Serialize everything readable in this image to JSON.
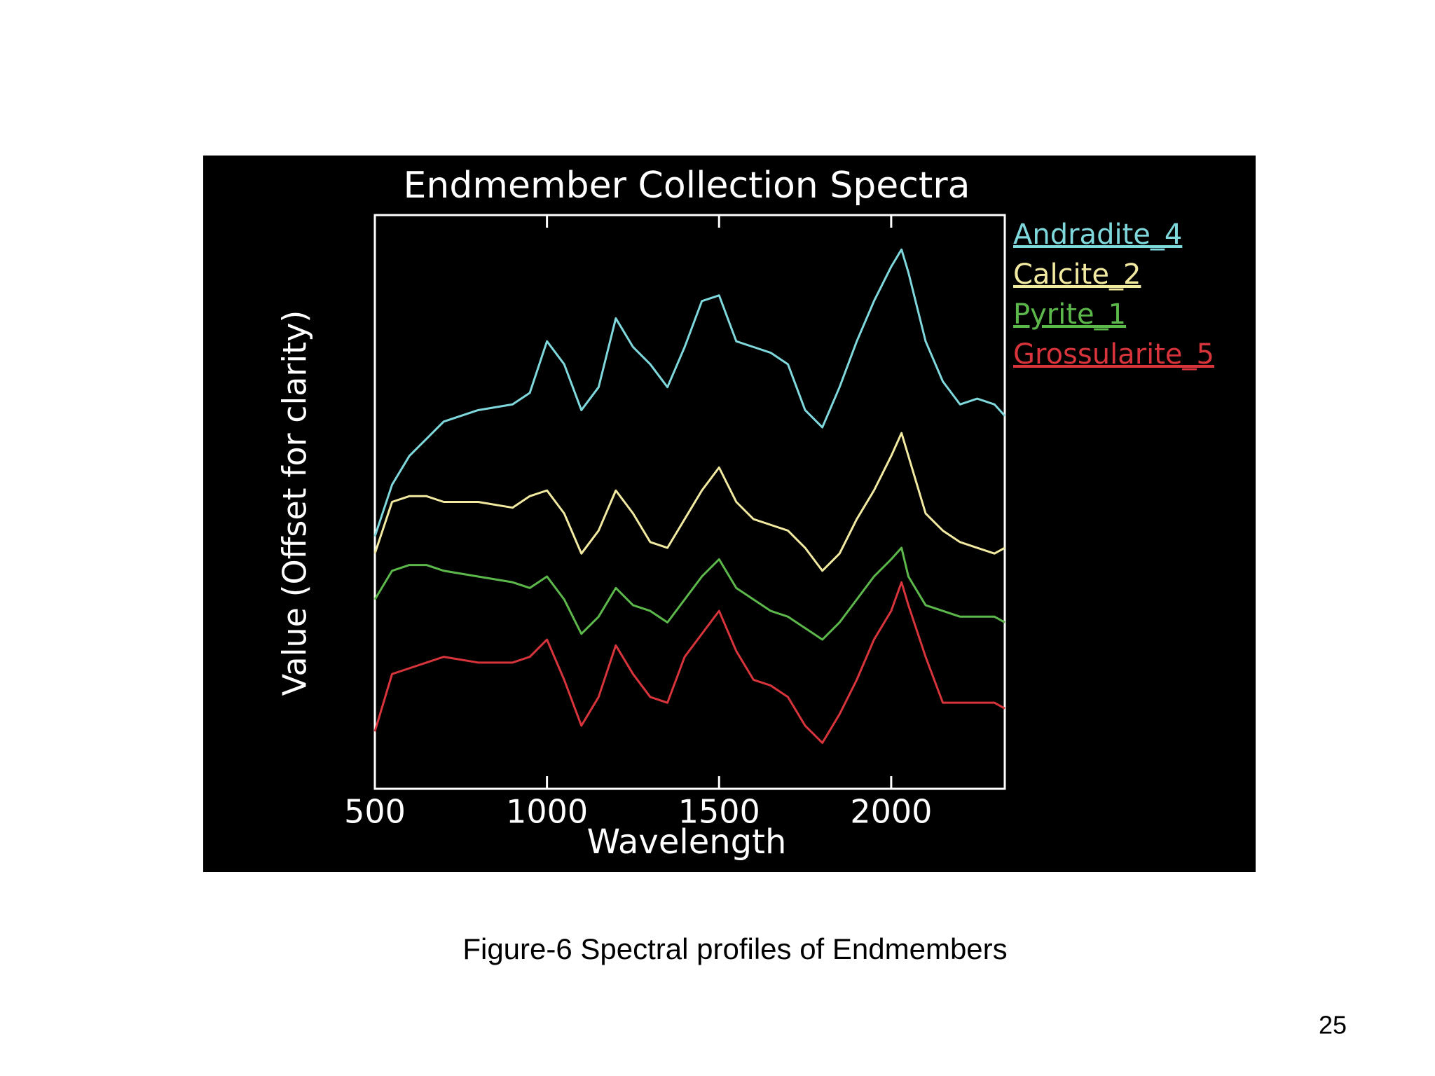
{
  "chart_data": {
    "type": "line",
    "title": "Endmember Collection Spectra",
    "x_label": "Wavelength",
    "y_label": "Value (Offset for clarity)",
    "x": [
      500,
      550,
      600,
      650,
      700,
      800,
      900,
      950,
      1000,
      1050,
      1100,
      1150,
      1200,
      1250,
      1300,
      1350,
      1400,
      1450,
      1500,
      1550,
      1600,
      1650,
      1700,
      1750,
      1800,
      1850,
      1900,
      1950,
      2000,
      2030,
      2050,
      2100,
      2150,
      2200,
      2250,
      2300,
      2330
    ],
    "series": [
      {
        "name": "Andradite_4",
        "color": "#7fd8dc",
        "values": [
          0.44,
          0.53,
          0.58,
          0.61,
          0.64,
          0.66,
          0.67,
          0.69,
          0.78,
          0.74,
          0.66,
          0.7,
          0.82,
          0.77,
          0.74,
          0.7,
          0.77,
          0.85,
          0.86,
          0.78,
          0.77,
          0.76,
          0.74,
          0.66,
          0.63,
          0.7,
          0.78,
          0.85,
          0.91,
          0.94,
          0.9,
          0.78,
          0.71,
          0.67,
          0.68,
          0.67,
          0.65
        ]
      },
      {
        "name": "Calcite_2",
        "color": "#f2eaa0",
        "values": [
          0.41,
          0.5,
          0.51,
          0.51,
          0.5,
          0.5,
          0.49,
          0.51,
          0.52,
          0.48,
          0.41,
          0.45,
          0.52,
          0.48,
          0.43,
          0.42,
          0.47,
          0.52,
          0.56,
          0.5,
          0.47,
          0.46,
          0.45,
          0.42,
          0.38,
          0.41,
          0.47,
          0.52,
          0.58,
          0.62,
          0.58,
          0.48,
          0.45,
          0.43,
          0.42,
          0.41,
          0.42
        ]
      },
      {
        "name": "Pyrite_1",
        "color": "#5cb84a",
        "values": [
          0.33,
          0.38,
          0.39,
          0.39,
          0.38,
          0.37,
          0.36,
          0.35,
          0.37,
          0.33,
          0.27,
          0.3,
          0.35,
          0.32,
          0.31,
          0.29,
          0.33,
          0.37,
          0.4,
          0.35,
          0.33,
          0.31,
          0.3,
          0.28,
          0.26,
          0.29,
          0.33,
          0.37,
          0.4,
          0.42,
          0.37,
          0.32,
          0.31,
          0.3,
          0.3,
          0.3,
          0.29
        ]
      },
      {
        "name": "Grossularite_5",
        "color": "#d8343c",
        "values": [
          0.1,
          0.2,
          0.21,
          0.22,
          0.23,
          0.22,
          0.22,
          0.23,
          0.26,
          0.19,
          0.11,
          0.16,
          0.25,
          0.2,
          0.16,
          0.15,
          0.23,
          0.27,
          0.31,
          0.24,
          0.19,
          0.18,
          0.16,
          0.11,
          0.08,
          0.13,
          0.19,
          0.26,
          0.31,
          0.36,
          0.32,
          0.23,
          0.15,
          0.15,
          0.15,
          0.15,
          0.14
        ]
      }
    ],
    "xlim": [
      500,
      2330
    ],
    "xticks": [
      500,
      1000,
      1500,
      2000
    ],
    "ylim": [
      0,
      1
    ],
    "legend": "right"
  },
  "caption": "Figure-6 Spectral profiles of Endmembers",
  "page_number": "25"
}
